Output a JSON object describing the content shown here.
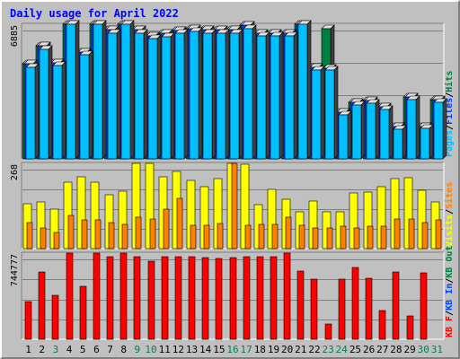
{
  "chart_data": [
    {
      "type": "bar",
      "title": "Daily usage for April 2022",
      "ymax_label": "6885",
      "legend": [
        "Pages",
        "Files",
        "Hits"
      ],
      "legend_colors": [
        "#00c0ff",
        "#0040ff",
        "#008040"
      ],
      "series": [
        {
          "name": "Hits",
          "color": "#008040",
          "values": [
            5100,
            6060,
            5150,
            7870,
            5750,
            7870,
            6910,
            8000,
            6910,
            6620,
            6720,
            6870,
            6960,
            6910,
            6910,
            6910,
            7150,
            6760,
            6760,
            6760,
            8400,
            4920,
            6960,
            2490,
            3020,
            3120,
            2780,
            1720,
            3310,
            1740,
            3180
          ]
        },
        {
          "name": "Files",
          "color": "#0040ff",
          "values": [
            5100,
            6060,
            5150,
            7640,
            5750,
            7870,
            6910,
            7870,
            6910,
            6620,
            6720,
            6870,
            6960,
            6910,
            6910,
            6910,
            7150,
            6760,
            6760,
            6760,
            8400,
            4920,
            4880,
            2490,
            3020,
            3120,
            2780,
            1720,
            3310,
            1740,
            3180
          ]
        },
        {
          "name": "Pages",
          "color": "#00c0ff",
          "values": [
            4920,
            5860,
            5000,
            7560,
            5580,
            7720,
            6760,
            7720,
            6760,
            6470,
            6570,
            6720,
            6820,
            6760,
            6760,
            6760,
            6990,
            6620,
            6620,
            6620,
            8250,
            4760,
            4750,
            2360,
            2880,
            2990,
            2640,
            1600,
            3170,
            1620,
            3050
          ]
        }
      ]
    },
    {
      "type": "bar",
      "ymax_label": "268",
      "legend": [
        "Visits",
        "Sites"
      ],
      "legend_colors": [
        "#ffff00",
        "#ff8000"
      ],
      "series": [
        {
          "name": "Visits",
          "color": "#ffff00",
          "values": [
            151,
            157,
            133,
            225,
            244,
            225,
            182,
            195,
            334,
            328,
            244,
            262,
            231,
            211,
            238,
            468,
            286,
            148,
            201,
            166,
            124,
            162,
            124,
            124,
            188,
            192,
            211,
            238,
            241,
            197,
            157
          ]
        },
        {
          "name": "Sites",
          "color": "#ff8000",
          "values": [
            88,
            70,
            55,
            113,
            97,
            97,
            88,
            82,
            106,
            100,
            133,
            170,
            79,
            79,
            85,
            296,
            79,
            82,
            82,
            106,
            79,
            70,
            70,
            76,
            70,
            76,
            76,
            101,
            100,
            88,
            97
          ]
        }
      ]
    },
    {
      "type": "bar",
      "ymax_label": "744777",
      "legend": [
        "KB F",
        "KB In",
        "KB Out"
      ],
      "legend_colors": [
        "#ff0000",
        "#0040ff",
        "#008040"
      ],
      "series": [
        {
          "name": "KB F",
          "color": "#ff0000",
          "values": [
            350000,
            630000,
            410000,
            910000,
            490000,
            1000000,
            770000,
            1000000,
            770000,
            730000,
            770000,
            770000,
            770000,
            760000,
            750000,
            760000,
            770000,
            770000,
            770000,
            1200000,
            640000,
            560000,
            140000,
            560000,
            670000,
            570000,
            270000,
            630000,
            220000,
            620000,
            0
          ]
        }
      ]
    }
  ],
  "x_labels": [
    "1",
    "2",
    "3",
    "4",
    "5",
    "6",
    "7",
    "8",
    "9",
    "10",
    "11",
    "12",
    "13",
    "14",
    "15",
    "16",
    "17",
    "18",
    "19",
    "20",
    "21",
    "22",
    "23",
    "24",
    "25",
    "26",
    "27",
    "28",
    "29",
    "30",
    "31"
  ],
  "weekend_days": [
    3,
    9,
    10,
    16,
    17,
    23,
    24,
    30,
    31
  ],
  "colors": {
    "background": "#c0c0c0",
    "panel": "#c0c0c0",
    "gridline": "#808080",
    "weekday_label": "#000000",
    "weekend_label": "#00804f",
    "title": "#0000ff"
  }
}
